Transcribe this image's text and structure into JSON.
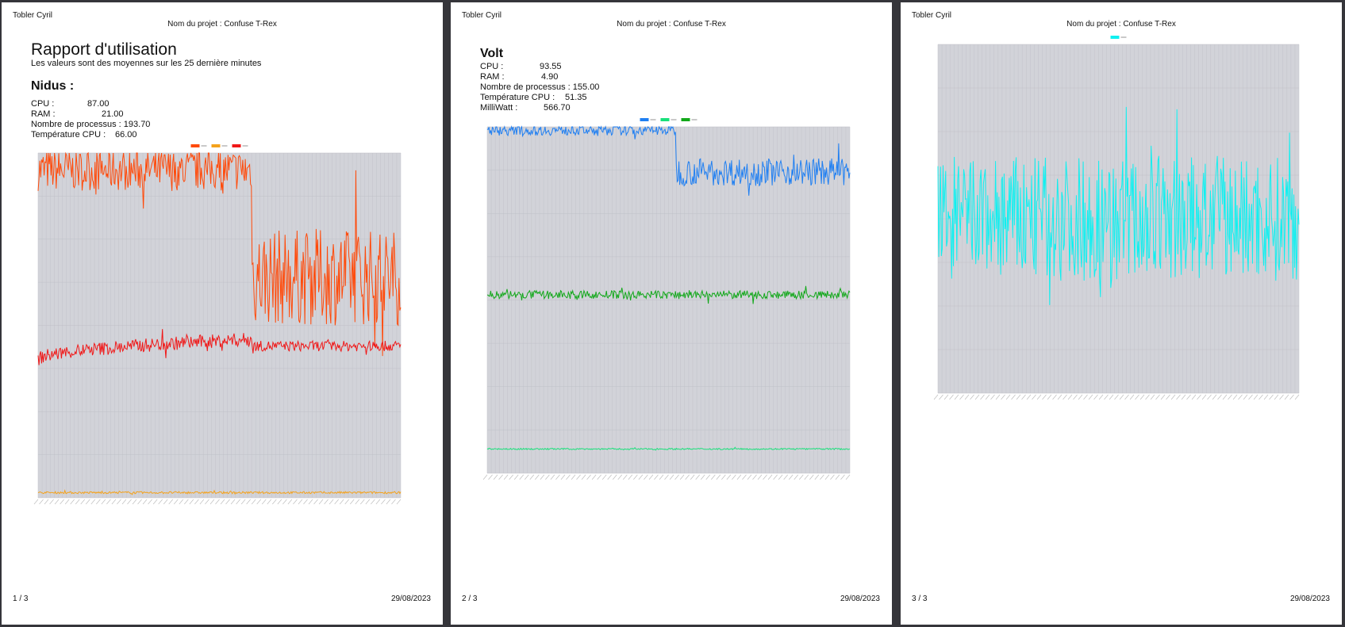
{
  "header": {
    "author": "Tobler Cyril",
    "project": "Nom du projet : Confuse T-Rex"
  },
  "footer": {
    "date": "29/08/2023"
  },
  "pages": [
    {
      "page_number": "1 / 3",
      "report_title": "Rapport d'utilisation",
      "report_subtitle": "Les valeurs sont des moyennes sur les 25 dernière minutes",
      "device": "Nidus :",
      "stats": [
        {
          "label": "CPU :",
          "value": "87.00"
        },
        {
          "label": "RAM :",
          "value": "21.00"
        },
        {
          "label": "Nombre de processus :",
          "value": "193.70"
        },
        {
          "label": "Température CPU :",
          "value": "66.00"
        }
      ]
    },
    {
      "page_number": "2 / 3",
      "device": "Volt",
      "stats": [
        {
          "label": "CPU :",
          "value": "93.55"
        },
        {
          "label": "RAM :",
          "value": "4.90"
        },
        {
          "label": "Nombre de processus :",
          "value": "155.00"
        },
        {
          "label": "Température CPU :",
          "value": "51.35"
        },
        {
          "label": "MilliWatt :",
          "value": "566.70"
        }
      ]
    },
    {
      "page_number": "3 / 3"
    }
  ],
  "colors": {
    "plot_bg": "#d2d3d9",
    "orange": "#ff4a0a",
    "amber": "#f4a21c",
    "red": "#f01818",
    "blue": "#1f7ff2",
    "green": "#12a81a",
    "mint": "#18e07a",
    "cyan": "#10f0f0"
  },
  "chart_data": [
    {
      "type": "line",
      "ylim": [
        0,
        100
      ],
      "grid": true,
      "legend": "top-center",
      "series": [
        {
          "color": "orange",
          "segments": [
            {
              "from": 0,
              "to": 0.59,
              "value": 95,
              "noise": 6
            },
            {
              "from": 0.59,
              "to": 1.0,
              "value": 64,
              "noise": 14
            }
          ]
        },
        {
          "color": "amber",
          "segments": [
            {
              "from": 0,
              "to": 1.0,
              "value": 1.5,
              "noise": 0.3
            }
          ]
        },
        {
          "color": "red",
          "segments": [
            {
              "from": 0,
              "to": 0.59,
              "value": 46,
              "start": 40,
              "noise": 2
            },
            {
              "from": 0.59,
              "to": 1.0,
              "value": 44,
              "noise": 1.5
            }
          ]
        }
      ]
    },
    {
      "type": "line",
      "ylim": [
        0,
        100
      ],
      "grid": true,
      "legend": "top-center",
      "series": [
        {
          "color": "blue",
          "segments": [
            {
              "from": 0,
              "to": 0.52,
              "value": 99,
              "noise": 1.5
            },
            {
              "from": 0.52,
              "to": 1.0,
              "value": 87,
              "noise": 4
            }
          ]
        },
        {
          "color": "mint",
          "segments": [
            {
              "from": 0,
              "to": 1.0,
              "value": 7,
              "noise": 0.2
            }
          ]
        },
        {
          "color": "green",
          "segments": [
            {
              "from": 0,
              "to": 1.0,
              "value": 51.5,
              "noise": 1.2
            }
          ]
        }
      ]
    },
    {
      "type": "line",
      "ylim": [
        0,
        100
      ],
      "grid": true,
      "legend": "top-center",
      "series": [
        {
          "color": "cyan",
          "segments": [
            {
              "from": 0,
              "to": 1.0,
              "value": 50,
              "noise": 18
            }
          ]
        }
      ]
    }
  ]
}
